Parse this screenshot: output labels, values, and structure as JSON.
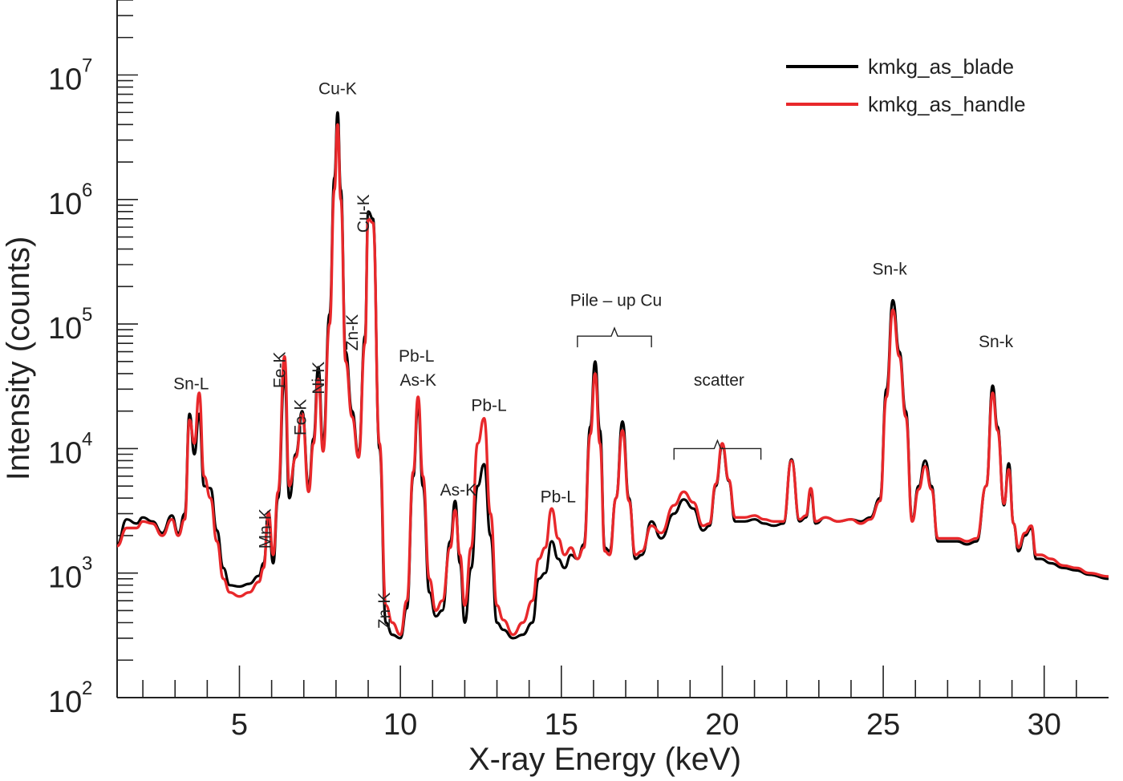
{
  "chart_data": {
    "type": "line",
    "title": "",
    "xlabel": "X-ray Energy (keV)",
    "ylabel": "Intensity (counts)",
    "xlim": [
      1.2,
      32.0
    ],
    "ylim": [
      100,
      40000000
    ],
    "yscale": "log",
    "x_ticks": [
      5,
      10,
      15,
      20,
      25,
      30
    ],
    "x_tick_labels": [
      "5",
      "10",
      "15",
      "20",
      "25",
      "30"
    ],
    "y_ticks": [
      {
        "value": 100,
        "base": "10",
        "exp": "2"
      },
      {
        "value": 1000,
        "base": "10",
        "exp": "3"
      },
      {
        "value": 10000,
        "base": "10",
        "exp": "4"
      },
      {
        "value": 100000,
        "base": "10",
        "exp": "5"
      },
      {
        "value": 1000000,
        "base": "10",
        "exp": "6"
      },
      {
        "value": 10000000,
        "base": "10",
        "exp": "7"
      }
    ],
    "grid": false,
    "legend_position": "top-right",
    "series": [
      {
        "name": "kmkg_as_blade",
        "color": "#000000",
        "x": [
          1.2,
          1.5,
          1.8,
          2.0,
          2.3,
          2.6,
          2.9,
          3.1,
          3.3,
          3.45,
          3.6,
          3.75,
          3.9,
          4.1,
          4.3,
          4.5,
          4.7,
          5.0,
          5.3,
          5.6,
          5.75,
          5.9,
          6.05,
          6.2,
          6.4,
          6.55,
          6.75,
          6.95,
          7.15,
          7.3,
          7.45,
          7.6,
          7.8,
          7.95,
          8.05,
          8.15,
          8.3,
          8.5,
          8.7,
          8.9,
          9.0,
          9.15,
          9.35,
          9.55,
          9.75,
          10.0,
          10.2,
          10.4,
          10.55,
          10.7,
          10.9,
          11.1,
          11.3,
          11.55,
          11.7,
          11.85,
          12.0,
          12.2,
          12.4,
          12.6,
          12.8,
          13.0,
          13.2,
          13.5,
          13.8,
          14.1,
          14.3,
          14.5,
          14.7,
          14.9,
          15.1,
          15.3,
          15.5,
          15.7,
          15.9,
          16.05,
          16.2,
          16.35,
          16.5,
          16.7,
          16.9,
          17.1,
          17.3,
          17.5,
          17.8,
          18.1,
          18.5,
          18.8,
          19.1,
          19.4,
          19.6,
          19.8,
          20.0,
          20.2,
          20.4,
          20.7,
          21.0,
          21.3,
          21.6,
          21.9,
          22.15,
          22.4,
          22.6,
          22.75,
          22.9,
          23.2,
          23.6,
          24.0,
          24.3,
          24.6,
          24.9,
          25.1,
          25.3,
          25.5,
          25.7,
          25.9,
          26.1,
          26.3,
          26.5,
          26.7,
          27.0,
          27.3,
          27.6,
          27.9,
          28.2,
          28.4,
          28.55,
          28.75,
          28.9,
          29.05,
          29.2,
          29.4,
          29.6,
          29.75,
          29.9,
          30.2,
          30.6,
          31.0,
          31.4,
          32.0
        ],
        "y": [
          1700,
          2700,
          2500,
          2800,
          2600,
          2100,
          2900,
          2100,
          3000,
          19000,
          9000,
          19000,
          5000,
          4800,
          2200,
          1100,
          800,
          780,
          820,
          950,
          1200,
          2700,
          1200,
          4000,
          38000,
          4000,
          9000,
          20000,
          5000,
          12000,
          45000,
          11000,
          120000,
          1500000,
          5000000,
          1200000,
          60000,
          20000,
          9000,
          80000,
          800000,
          700000,
          10000,
          400,
          320,
          300,
          520,
          6000,
          22000,
          5000,
          700,
          450,
          500,
          1800,
          3800,
          1200,
          400,
          1100,
          5000,
          7500,
          2000,
          400,
          350,
          300,
          320,
          400,
          900,
          1000,
          1800,
          1300,
          1100,
          1400,
          1300,
          1700,
          15000,
          50000,
          14000,
          1600,
          1500,
          4000,
          16500,
          4000,
          1300,
          1400,
          2600,
          1900,
          3000,
          3900,
          3300,
          2200,
          2400,
          5000,
          10500,
          5500,
          2600,
          2600,
          2700,
          2500,
          2400,
          2500,
          8200,
          2600,
          2800,
          4500,
          2500,
          2800,
          2600,
          2700,
          2600,
          2800,
          4000,
          30000,
          155000,
          60000,
          20000,
          2700,
          5000,
          8000,
          5000,
          1800,
          1800,
          1800,
          1700,
          1800,
          5000,
          32000,
          15000,
          3500,
          7600,
          2500,
          1500,
          2000,
          2300,
          1300,
          1300,
          1200,
          1100,
          1050,
          970,
          900
        ]
      },
      {
        "name": "kmkg_as_handle",
        "color": "#e8282b",
        "x": [
          1.2,
          1.5,
          1.8,
          2.0,
          2.3,
          2.6,
          2.9,
          3.1,
          3.3,
          3.45,
          3.6,
          3.75,
          3.9,
          4.1,
          4.3,
          4.5,
          4.7,
          5.0,
          5.3,
          5.6,
          5.75,
          5.9,
          6.05,
          6.2,
          6.4,
          6.55,
          6.75,
          6.95,
          7.15,
          7.3,
          7.45,
          7.6,
          7.8,
          7.95,
          8.05,
          8.15,
          8.3,
          8.5,
          8.7,
          8.9,
          9.0,
          9.15,
          9.35,
          9.55,
          9.75,
          10.0,
          10.2,
          10.4,
          10.55,
          10.7,
          10.9,
          11.1,
          11.3,
          11.55,
          11.7,
          11.85,
          12.0,
          12.2,
          12.4,
          12.6,
          12.8,
          13.0,
          13.2,
          13.5,
          13.8,
          14.1,
          14.3,
          14.5,
          14.7,
          14.9,
          15.1,
          15.3,
          15.5,
          15.7,
          15.9,
          16.05,
          16.2,
          16.35,
          16.5,
          16.7,
          16.9,
          17.1,
          17.3,
          17.5,
          17.8,
          18.1,
          18.5,
          18.8,
          19.1,
          19.4,
          19.6,
          19.8,
          20.0,
          20.2,
          20.4,
          20.7,
          21.0,
          21.3,
          21.6,
          21.9,
          22.15,
          22.4,
          22.6,
          22.75,
          22.9,
          23.2,
          23.6,
          24.0,
          24.3,
          24.6,
          24.9,
          25.1,
          25.3,
          25.5,
          25.7,
          25.9,
          26.1,
          26.3,
          26.5,
          26.7,
          27.0,
          27.3,
          27.6,
          27.9,
          28.2,
          28.4,
          28.55,
          28.75,
          28.9,
          29.05,
          29.2,
          29.4,
          29.6,
          29.75,
          29.9,
          30.2,
          30.6,
          31.0,
          31.4,
          32.0
        ],
        "y": [
          1650,
          2300,
          2300,
          2600,
          2500,
          2000,
          2700,
          2000,
          2700,
          17000,
          11000,
          28000,
          6000,
          4000,
          1800,
          900,
          700,
          650,
          700,
          850,
          1100,
          3100,
          1400,
          4500,
          55000,
          5000,
          8500,
          19000,
          4500,
          11000,
          36000,
          9500,
          100000,
          1200000,
          4000000,
          1000000,
          50000,
          18000,
          8500,
          70000,
          700000,
          650000,
          11000,
          550,
          400,
          320,
          600,
          6500,
          26000,
          6000,
          900,
          500,
          600,
          1600,
          3200,
          1400,
          550,
          1600,
          11000,
          17500,
          3000,
          550,
          420,
          320,
          400,
          600,
          1300,
          1600,
          3300,
          1900,
          1400,
          1600,
          1300,
          1600,
          13000,
          40000,
          11000,
          1500,
          1400,
          4000,
          14000,
          3800,
          1400,
          1500,
          2400,
          2100,
          3500,
          4500,
          3700,
          2400,
          2500,
          5200,
          11000,
          5600,
          2800,
          2800,
          2900,
          2700,
          2600,
          2600,
          8000,
          2700,
          2900,
          4800,
          2600,
          2800,
          2600,
          2700,
          2500,
          2700,
          3800,
          26000,
          130000,
          55000,
          18000,
          2600,
          4700,
          7200,
          4700,
          1900,
          1900,
          1900,
          1800,
          1900,
          5000,
          28000,
          14000,
          3600,
          6800,
          2500,
          1600,
          2100,
          2400,
          1400,
          1400,
          1300,
          1150,
          1100,
          1000,
          940
        ]
      }
    ],
    "annotations": [
      {
        "text": "Sn-L",
        "x": 3.5,
        "y": 30000,
        "rotated": false
      },
      {
        "text": "Mn-K",
        "x": 5.8,
        "y": 3300,
        "rotated": true
      },
      {
        "text": "Fe-K",
        "x": 6.25,
        "y": 60000,
        "rotated": true
      },
      {
        "text": "Fe-K",
        "x": 6.9,
        "y": 25000,
        "rotated": true
      },
      {
        "text": "Ni-K",
        "x": 7.45,
        "y": 50000,
        "rotated": true
      },
      {
        "text": "Cu-K",
        "x": 8.05,
        "y": 7000000,
        "rotated": false
      },
      {
        "text": "Cu-K",
        "x": 8.85,
        "y": 1100000,
        "rotated": true
      },
      {
        "text": "Zn-K",
        "x": 8.5,
        "y": 120000,
        "rotated": true
      },
      {
        "text": "Zn-K",
        "x": 9.5,
        "y": 700,
        "rotated": true
      },
      {
        "text": "Pb-L",
        "x": 10.5,
        "y": 50000,
        "rotated": false
      },
      {
        "text": "As-K",
        "x": 10.55,
        "y": 32000,
        "rotated": false
      },
      {
        "text": "Pb-L",
        "x": 12.75,
        "y": 20000,
        "rotated": false
      },
      {
        "text": "As-K",
        "x": 11.8,
        "y": 4200,
        "rotated": false
      },
      {
        "text": "Pb-L",
        "x": 14.9,
        "y": 3700,
        "rotated": false
      },
      {
        "text": "Pile – up Cu",
        "x": 16.7,
        "y": 140000,
        "rotated": false
      },
      {
        "text": "scatter",
        "x": 19.9,
        "y": 32000,
        "rotated": false
      },
      {
        "text": "Sn-k",
        "x": 25.2,
        "y": 250000,
        "rotated": false
      },
      {
        "text": "Sn-k",
        "x": 28.5,
        "y": 65000,
        "rotated": false
      }
    ],
    "brackets": [
      {
        "x_start": 15.5,
        "x_end": 17.8,
        "y": 80000
      },
      {
        "x_start": 18.5,
        "x_end": 21.2,
        "y": 10000
      }
    ]
  }
}
